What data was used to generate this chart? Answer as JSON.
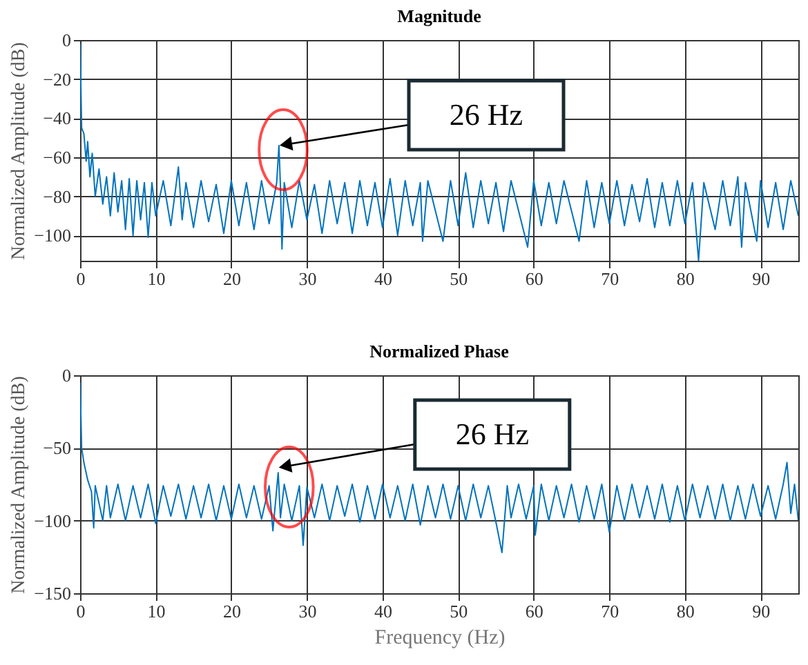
{
  "chart_data": [
    {
      "type": "line",
      "title": "Magnitude",
      "ylabel": "Normalized Amplitude (dB)",
      "xlim": [
        0,
        95
      ],
      "ylim": [
        -113,
        0
      ],
      "xticks": [
        0,
        10,
        20,
        30,
        40,
        50,
        60,
        70,
        80,
        90
      ],
      "yticks": [
        0,
        -20,
        -40,
        -60,
        -80,
        -100
      ],
      "grid": true,
      "series": [
        {
          "color": "#0072bd",
          "x": [
            0,
            0.2,
            0.5,
            0.8,
            1,
            1.3,
            1.6,
            2,
            2.5,
            3,
            3.5,
            4,
            4.5,
            5,
            5.5,
            6,
            6.5,
            7,
            7.5,
            8,
            8.5,
            9,
            9.5,
            10,
            11,
            12,
            13,
            13.5,
            14,
            15,
            16,
            17,
            18,
            19,
            20,
            21,
            22,
            23,
            24,
            25,
            26,
            26.3,
            26.5,
            26.7,
            27,
            28,
            29,
            30,
            31,
            32,
            33,
            34,
            35,
            36,
            37,
            38,
            39,
            40,
            41,
            42,
            43,
            44,
            45,
            45.3,
            46,
            48,
            49,
            50,
            51,
            52,
            53,
            54,
            55,
            56,
            57,
            59.2,
            60,
            61,
            62,
            63,
            64,
            66,
            67,
            68,
            69,
            70,
            71,
            72,
            73,
            74,
            75,
            76,
            77,
            78,
            79,
            80,
            81,
            81.8,
            82.5,
            84,
            85,
            86,
            87,
            87.5,
            88,
            89.5,
            90,
            91,
            92,
            93,
            94,
            95
          ],
          "values": [
            -2,
            -45,
            -48,
            -62,
            -52,
            -70,
            -58,
            -80,
            -66,
            -84,
            -70,
            -90,
            -68,
            -88,
            -72,
            -97,
            -71,
            -100,
            -72,
            -92,
            -73,
            -101,
            -73,
            -90,
            -72,
            -95,
            -65,
            -92,
            -73,
            -96,
            -72,
            -93,
            -74,
            -99,
            -72,
            -95,
            -73,
            -97,
            -72,
            -94,
            -73,
            -54,
            -75,
            -107,
            -73,
            -96,
            -72,
            -92,
            -74,
            -99,
            -72,
            -94,
            -73,
            -99,
            -72,
            -95,
            -73,
            -96,
            -71,
            -100,
            -72,
            -95,
            -73,
            -103,
            -72,
            -103,
            -72,
            -95,
            -68,
            -96,
            -72,
            -94,
            -73,
            -98,
            -72,
            -106,
            -72,
            -95,
            -73,
            -94,
            -72,
            -103,
            -72,
            -96,
            -73,
            -94,
            -72,
            -95,
            -74,
            -93,
            -71,
            -96,
            -73,
            -95,
            -72,
            -94,
            -73,
            -113,
            -73,
            -97,
            -72,
            -95,
            -70,
            -106,
            -73,
            -103,
            -72,
            -96,
            -73,
            -97,
            -72,
            -90
          ]
        }
      ],
      "annotations": [
        "26 Hz"
      ]
    },
    {
      "type": "line",
      "title": "Normalized Phase",
      "xlabel": "Frequency (Hz)",
      "ylabel": "Normalized Amplitude (dB)",
      "xlim": [
        0,
        95
      ],
      "ylim": [
        -150,
        0
      ],
      "xticks": [
        0,
        10,
        20,
        30,
        40,
        50,
        60,
        70,
        80,
        90
      ],
      "yticks": [
        0,
        -50,
        -100,
        -150
      ],
      "grid": true,
      "series": [
        {
          "color": "#0072bd",
          "x": [
            0,
            0.2,
            0.5,
            1,
            1.5,
            1.8,
            2,
            3,
            3.5,
            4,
            5,
            6,
            7,
            8,
            9,
            10,
            11,
            12,
            13,
            14,
            15,
            16,
            17,
            18,
            19,
            20,
            21,
            22,
            23,
            24,
            25,
            25.5,
            26.2,
            26.5,
            27,
            28,
            29,
            29.5,
            30,
            31,
            32,
            33,
            34,
            35,
            36,
            37,
            38,
            39,
            40,
            41,
            42,
            43,
            44,
            45,
            46,
            47,
            48,
            49,
            50,
            51,
            52,
            53,
            54,
            55,
            55.8,
            56.5,
            57,
            58,
            59,
            60,
            60.2,
            61,
            62,
            63,
            64,
            65,
            66,
            67,
            68,
            69,
            70,
            71,
            72,
            73,
            74,
            75,
            76,
            77,
            78,
            79,
            80,
            81,
            82,
            83,
            84,
            85,
            86,
            87,
            88,
            89,
            90,
            91,
            92,
            93,
            93.5,
            94,
            94.5,
            95
          ],
          "values": [
            -5,
            -50,
            -60,
            -72,
            -80,
            -105,
            -76,
            -100,
            -76,
            -98,
            -75,
            -100,
            -76,
            -98,
            -75,
            -102,
            -76,
            -97,
            -75,
            -99,
            -76,
            -98,
            -75,
            -100,
            -76,
            -99,
            -75,
            -98,
            -76,
            -99,
            -76,
            -107,
            -67,
            -98,
            -75,
            -100,
            -76,
            -117,
            -77,
            -98,
            -75,
            -100,
            -76,
            -97,
            -75,
            -101,
            -76,
            -99,
            -75,
            -98,
            -76,
            -100,
            -75,
            -103,
            -76,
            -98,
            -75,
            -99,
            -76,
            -100,
            -75,
            -98,
            -76,
            -101,
            -122,
            -76,
            -98,
            -75,
            -99,
            -76,
            -110,
            -75,
            -100,
            -76,
            -98,
            -75,
            -101,
            -76,
            -99,
            -75,
            -108,
            -76,
            -100,
            -75,
            -98,
            -76,
            -99,
            -75,
            -101,
            -76,
            -100,
            -75,
            -98,
            -76,
            -99,
            -75,
            -100,
            -76,
            -99,
            -75,
            -97,
            -76,
            -99,
            -75,
            -60,
            -95,
            -75,
            -100
          ]
        }
      ],
      "annotations": [
        "26 Hz"
      ]
    }
  ]
}
